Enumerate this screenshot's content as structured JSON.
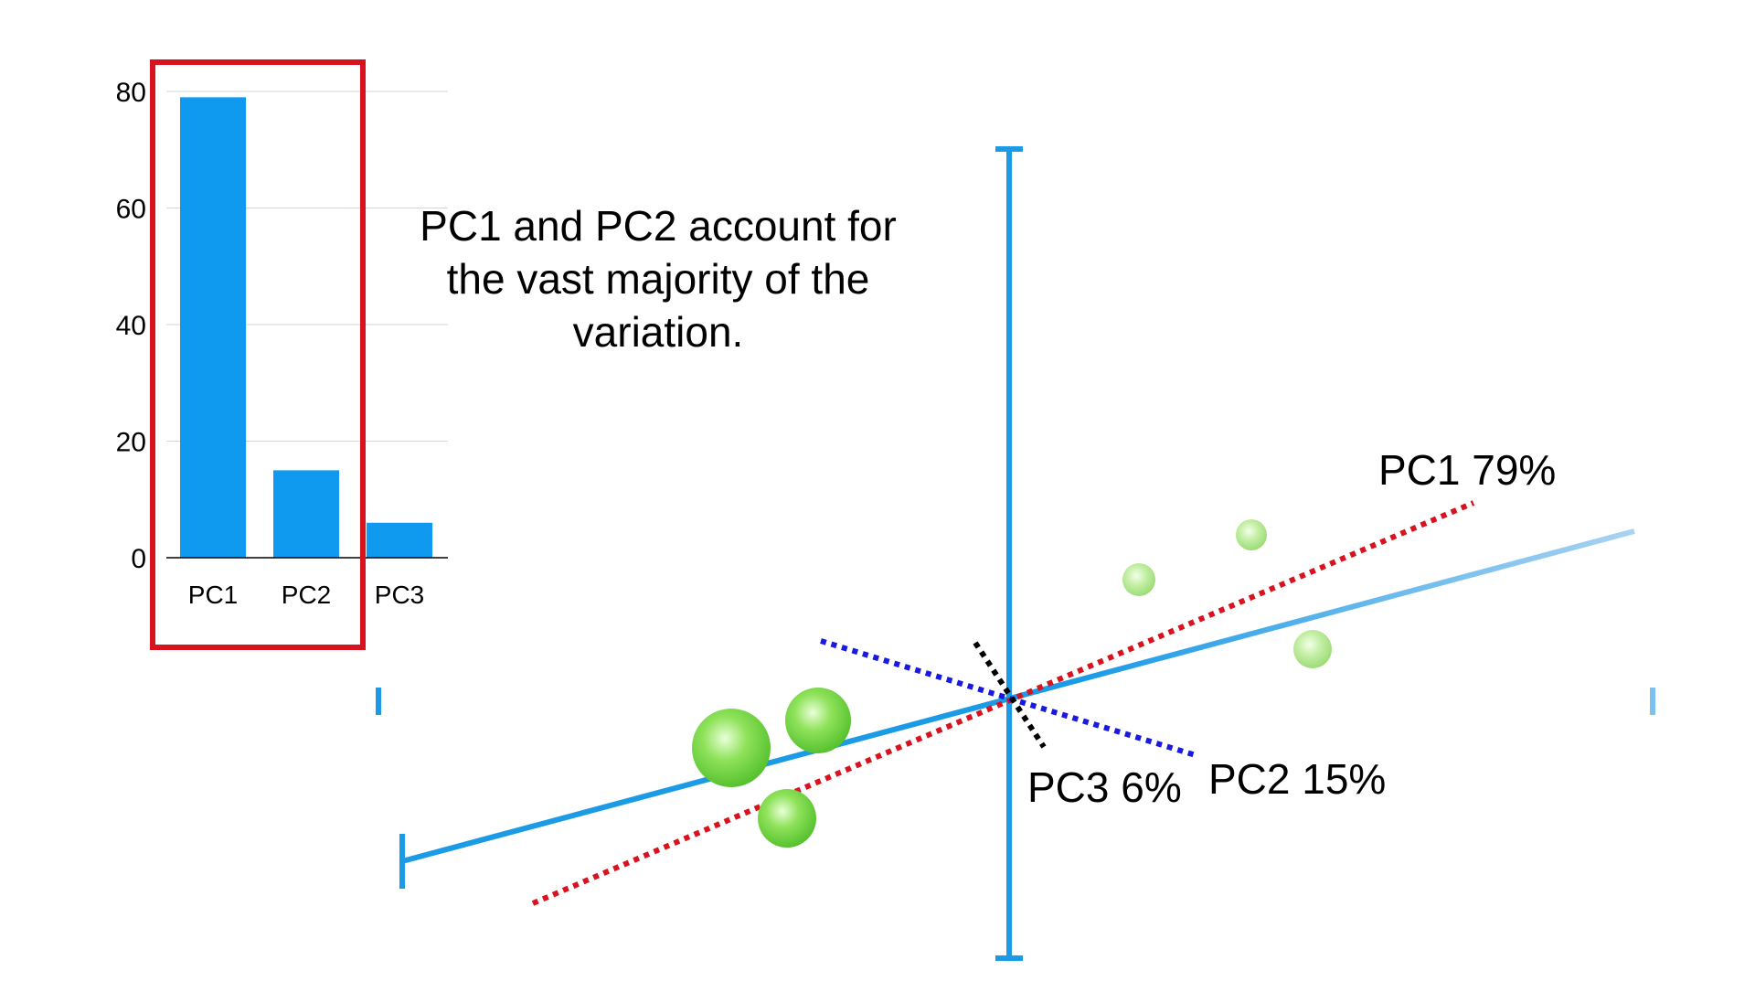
{
  "chart_data": [
    {
      "type": "bar",
      "categories": [
        "PC1",
        "PC2",
        "PC3"
      ],
      "values": [
        79,
        15,
        6
      ],
      "ylim": [
        0,
        80
      ],
      "yticks": [
        0,
        20,
        40,
        60,
        80
      ],
      "grid": true,
      "bar_color": "#0f9af0",
      "highlight": {
        "categories": [
          "PC1",
          "PC2"
        ],
        "color": "#d9121f"
      }
    },
    {
      "type": "scatter",
      "axis_color": "#1b9ae6",
      "points_color": "#7fd84b",
      "components": [
        {
          "label": "PC1 79%",
          "color": "#d9121f"
        },
        {
          "label": "PC2 15%",
          "color": "#1a1adf"
        },
        {
          "label": "PC3 6%",
          "color": "#000000"
        }
      ]
    }
  ],
  "annotation": {
    "lines": [
      "PC1 and PC2 account for",
      "the vast majority of the",
      "variation."
    ]
  }
}
